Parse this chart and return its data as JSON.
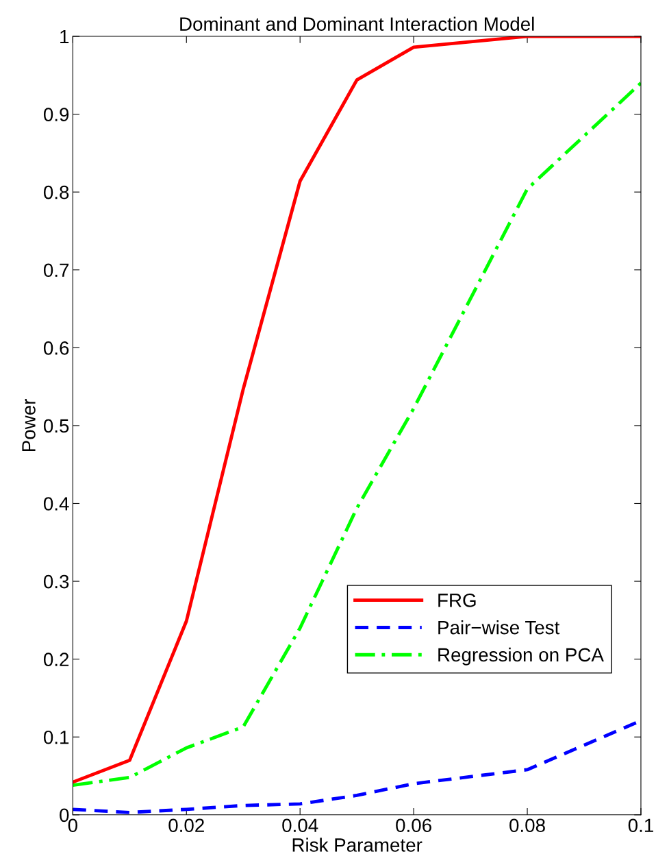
{
  "chart_data": {
    "type": "line",
    "title": "Dominant and Dominant Interaction Model",
    "xlabel": "Risk Parameter",
    "ylabel": "Power",
    "xlim": [
      0,
      0.1
    ],
    "xticks": [
      0,
      0.02,
      0.04,
      0.06,
      0.08,
      0.1
    ],
    "ylim": [
      0,
      1
    ],
    "yticks": [
      0,
      0.1,
      0.2,
      0.3,
      0.4,
      0.5,
      0.6,
      0.7,
      0.8,
      0.9,
      1
    ],
    "grid": false,
    "legend": "lower right",
    "series": [
      {
        "name": "FRG",
        "color": "#ff0000",
        "line_style": "solid",
        "x": [
          0,
          0.01,
          0.02,
          0.03,
          0.04,
          0.05,
          0.06,
          0.08,
          0.1
        ],
        "values": [
          0.042,
          0.07,
          0.249,
          0.547,
          0.814,
          0.944,
          0.986,
          1.0,
          1.0
        ]
      },
      {
        "name": "Pair−wise Test",
        "color": "#0000ff",
        "line_style": "dashed",
        "x": [
          0,
          0.01,
          0.02,
          0.03,
          0.04,
          0.05,
          0.06,
          0.08,
          0.1
        ],
        "values": [
          0.007,
          0.003,
          0.007,
          0.012,
          0.014,
          0.025,
          0.04,
          0.058,
          0.121
        ]
      },
      {
        "name": "Regression on PCA",
        "color": "#00ff00",
        "line_style": "dashdot",
        "x": [
          0,
          0.01,
          0.02,
          0.03,
          0.04,
          0.05,
          0.06,
          0.08,
          0.1
        ],
        "values": [
          0.038,
          0.048,
          0.086,
          0.113,
          0.24,
          0.394,
          0.522,
          0.804,
          0.94
        ]
      }
    ]
  }
}
